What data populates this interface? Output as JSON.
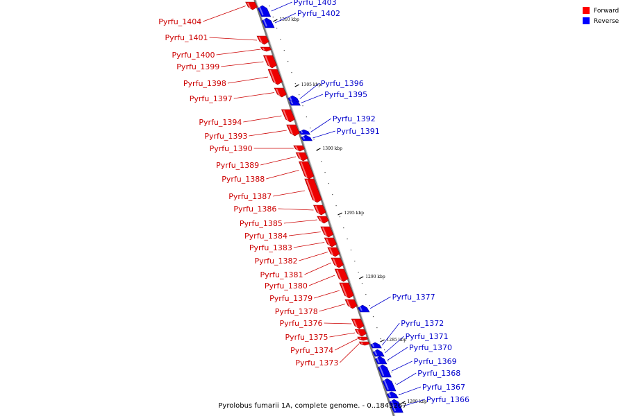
{
  "caption": "Pyrolobus fumarii 1A, complete genome. - 0..1843267",
  "legend": [
    {
      "label": "Forward",
      "color": "#ff0000"
    },
    {
      "label": "Reverse",
      "color": "#0000ff"
    }
  ],
  "ticks": [
    "1310 kbp",
    "1305 kbp",
    "1300 kbp",
    "1295 kbp",
    "1290 kbp",
    "1285 kbp",
    "1280 kbp"
  ],
  "forward_genes": [
    "Pyrfu_1404",
    "Pyrfu_1401",
    "Pyrfu_1400",
    "Pyrfu_1399",
    "Pyrfu_1398",
    "Pyrfu_1397",
    "Pyrfu_1394",
    "Pyrfu_1393",
    "Pyrfu_1390",
    "Pyrfu_1389",
    "Pyrfu_1388",
    "Pyrfu_1387",
    "Pyrfu_1386",
    "Pyrfu_1385",
    "Pyrfu_1384",
    "Pyrfu_1383",
    "Pyrfu_1382",
    "Pyrfu_1381",
    "Pyrfu_1380",
    "Pyrfu_1379",
    "Pyrfu_1378",
    "Pyrfu_1376",
    "Pyrfu_1375",
    "Pyrfu_1374",
    "Pyrfu_1373"
  ],
  "reverse_genes": [
    "Pyrfu_1403",
    "Pyrfu_1402",
    "Pyrfu_1396",
    "Pyrfu_1395",
    "Pyrfu_1392",
    "Pyrfu_1391",
    "Pyrfu_1377",
    "Pyrfu_1372",
    "Pyrfu_1371",
    "Pyrfu_1370",
    "Pyrfu_1369",
    "Pyrfu_1368",
    "Pyrfu_1367",
    "Pyrfu_1366"
  ]
}
